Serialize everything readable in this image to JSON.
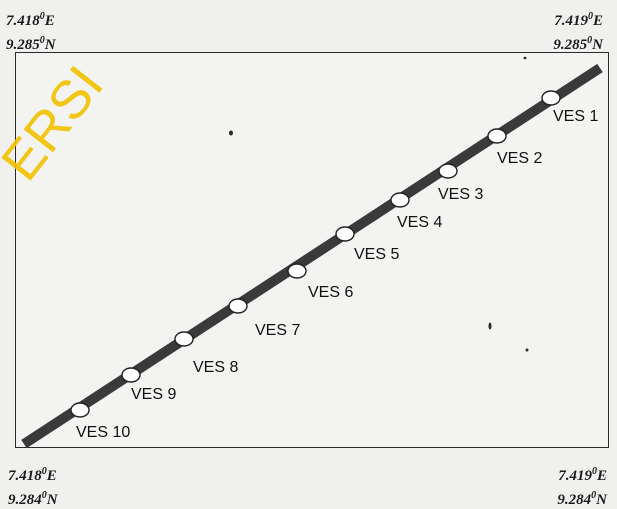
{
  "corners": {
    "top_left": {
      "lon": "7.418",
      "lat": "9.285",
      "lon_dir": "E",
      "lat_dir": "N"
    },
    "top_right": {
      "lon": "7.419",
      "lat": "9.285",
      "lon_dir": "E",
      "lat_dir": "N"
    },
    "bottom_left": {
      "lon": "7.418",
      "lat": "9.284",
      "lon_dir": "E",
      "lat_dir": "N"
    },
    "bottom_right": {
      "lon": "7.419",
      "lat": "9.284",
      "lon_dir": "E",
      "lat_dir": "N"
    }
  },
  "degree_symbol": "0",
  "watermark": "ERSI",
  "profile_line": {
    "name": "",
    "color": "#3a3a3a"
  },
  "stations": [
    {
      "label": "VES 1"
    },
    {
      "label": "VES 2"
    },
    {
      "label": "VES 3"
    },
    {
      "label": "VES 4"
    },
    {
      "label": "VES 5"
    },
    {
      "label": "VES 6"
    },
    {
      "label": "VES 7"
    },
    {
      "label": "VES 8"
    },
    {
      "label": "VES 9"
    },
    {
      "label": "VES 10"
    }
  ],
  "colors": {
    "line": "#3a3a3a",
    "station_fill": "#ffffff",
    "watermark": "#f2c200"
  }
}
